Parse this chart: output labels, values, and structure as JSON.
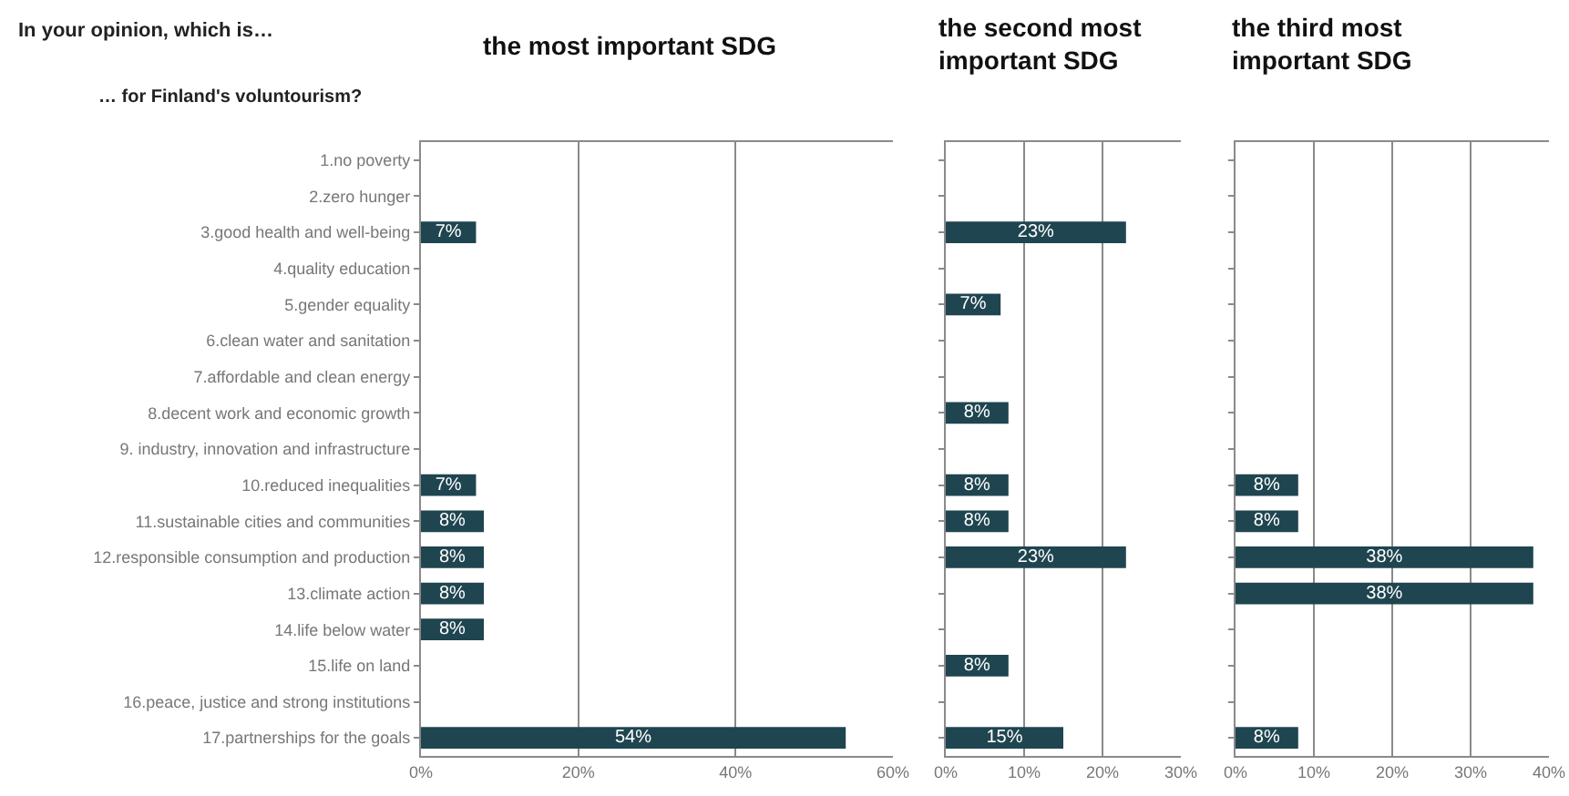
{
  "chart_data": [
    {
      "type": "bar",
      "orientation": "horizontal",
      "title": "the most important SDG",
      "annotations": [
        "In your opinion, which is…",
        "… for Finland's voluntourism?"
      ],
      "categories": [
        "1.no poverty",
        "2.zero hunger",
        "3.good health and well-being",
        "4.quality education",
        "5.gender equality",
        "6.clean water and sanitation",
        "7.affordable and clean energy",
        "8.decent work and economic growth",
        "9. industry, innovation and infrastructure",
        "10.reduced inequalities",
        "11.sustainable cities and communities",
        "12.responsible consumption and production",
        "13.climate action",
        "14.life below water",
        "15.life on land",
        "16.peace, justice and strong institutions",
        "17.partnerships for the goals"
      ],
      "values": [
        null,
        null,
        7,
        null,
        null,
        null,
        null,
        null,
        null,
        7,
        8,
        8,
        8,
        8,
        null,
        null,
        54
      ],
      "value_labels": [
        null,
        null,
        "7%",
        null,
        null,
        null,
        null,
        null,
        null,
        "7%",
        "8%",
        "8%",
        "8%",
        "8%",
        null,
        null,
        "54%"
      ],
      "color": "#1f4550",
      "xlim": [
        0,
        60
      ],
      "xticks": [
        {
          "value": 0,
          "label": "0%"
        },
        {
          "value": 20,
          "label": "20%"
        },
        {
          "value": 40,
          "label": "40%"
        },
        {
          "value": 60,
          "label": "60%"
        }
      ],
      "grid": "x"
    },
    {
      "type": "bar",
      "orientation": "horizontal",
      "title": "the second most\nimportant SDG",
      "categories": [
        null,
        null,
        null,
        null,
        null,
        null,
        null,
        null,
        null,
        null,
        null,
        null,
        null,
        null,
        null,
        null,
        null
      ],
      "values": [
        null,
        null,
        23,
        null,
        7,
        null,
        null,
        8,
        null,
        8,
        8,
        23,
        null,
        null,
        8,
        null,
        15
      ],
      "value_labels": [
        null,
        null,
        "23%",
        null,
        "7%",
        null,
        null,
        "8%",
        null,
        "8%",
        "8%",
        "23%",
        null,
        null,
        "8%",
        null,
        "15%"
      ],
      "color": "#1f4550",
      "xlim": [
        0,
        30
      ],
      "xticks": [
        {
          "value": 0,
          "label": "0%"
        },
        {
          "value": 10,
          "label": "10%"
        },
        {
          "value": 20,
          "label": "20%"
        },
        {
          "value": 30,
          "label": "30%"
        }
      ],
      "grid": "x",
      "tick_labels": "x"
    },
    {
      "type": "bar",
      "orientation": "horizontal",
      "title": "the third most\nimportant SDG",
      "categories": [
        null,
        null,
        null,
        null,
        null,
        null,
        null,
        null,
        null,
        null,
        null,
        null,
        null,
        null,
        null,
        null,
        null
      ],
      "values": [
        null,
        null,
        null,
        null,
        null,
        null,
        null,
        null,
        null,
        8,
        8,
        38,
        38,
        null,
        null,
        null,
        8
      ],
      "value_labels": [
        null,
        null,
        null,
        null,
        null,
        null,
        null,
        null,
        null,
        "8%",
        "8%",
        "38%",
        "38%",
        null,
        null,
        null,
        "8%"
      ],
      "color": "#1f4550",
      "xlim": [
        0,
        40
      ],
      "xticks": [
        {
          "value": 0,
          "label": "0%"
        },
        {
          "value": 10,
          "label": "10%"
        },
        {
          "value": 20,
          "label": "20%"
        },
        {
          "value": 30,
          "label": "30%"
        },
        {
          "value": 40,
          "label": "40%"
        }
      ],
      "grid": "x",
      "tick_labels": "x"
    }
  ]
}
